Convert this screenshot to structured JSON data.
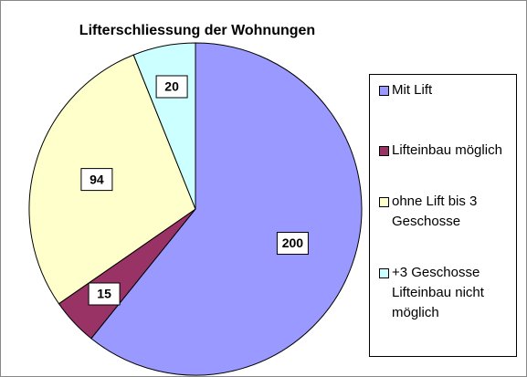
{
  "chart_data": {
    "type": "pie",
    "title": "Lifterschliessung der Wohnungen",
    "categories": [
      "Mit Lift",
      "Lifteinbau möglich",
      "ohne Lift bis 3 Geschosse",
      "+3 Geschosse Lifteinbau nicht möglich"
    ],
    "values": [
      200,
      15,
      94,
      20
    ],
    "colors": [
      "#9999ff",
      "#993366",
      "#ffffcc",
      "#ccffff"
    ],
    "legend": "right"
  }
}
